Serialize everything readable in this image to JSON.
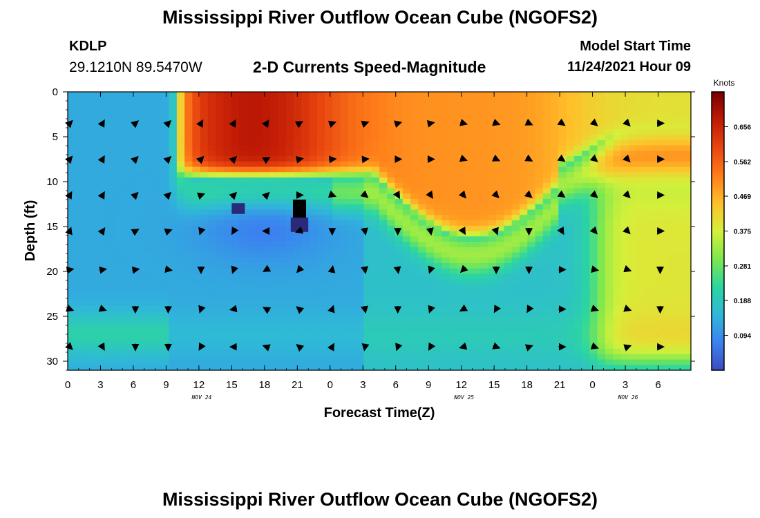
{
  "header": {
    "title": "Mississippi River Outflow Ocean Cube (NGOFS2)",
    "station_id": "KDLP",
    "coords": "29.1210N  89.5470W",
    "subtitle": "2-D Currents Speed-Magnitude",
    "model_start_label": "Model Start Time",
    "model_start_value": "11/24/2021 Hour 09",
    "footer_title": "Mississippi River Outflow Ocean Cube (NGOFS2)"
  },
  "chart_data": {
    "type": "heatmap",
    "title": "2-D Currents Speed-Magnitude",
    "xlabel": "Forecast Time(Z)",
    "ylabel": "Depth (ft)",
    "x_hours_from_start": [
      0,
      57
    ],
    "y_range": [
      0,
      31
    ],
    "x_ticks": [
      "0",
      "3",
      "6",
      "9",
      "12",
      "15",
      "18",
      "21",
      "0",
      "3",
      "6",
      "9",
      "12",
      "15",
      "18",
      "21",
      "0",
      "3",
      "6"
    ],
    "y_ticks": [
      0,
      5,
      10,
      15,
      20,
      25,
      30
    ],
    "date_labels": [
      {
        "text": "NOV 24",
        "at_hour": 12
      },
      {
        "text": "NOV 25",
        "at_hour": 36
      },
      {
        "text": "NOV 26",
        "at_hour": 51
      }
    ],
    "colorbar": {
      "label": "Knots",
      "ticks": [
        "0.656",
        "0.562",
        "0.469",
        "0.375",
        "0.281",
        "0.188",
        "0.094"
      ],
      "tick_values": [
        0.656,
        0.562,
        0.469,
        0.375,
        0.281,
        0.188,
        0.094
      ],
      "range": [
        0.0,
        0.75
      ],
      "colors": [
        "#3b4cc0",
        "#3b82f0",
        "#2fb8d8",
        "#2cd6a0",
        "#7ee84e",
        "#d4f03a",
        "#ffc02a",
        "#ff7d1a",
        "#e8450f",
        "#c01a05",
        "#780000"
      ]
    },
    "arrow_hours": [
      0,
      3,
      6,
      9,
      12,
      15,
      18,
      21,
      24,
      27,
      30,
      33,
      36,
      39,
      42,
      45,
      48,
      51,
      54
    ],
    "arrow_depths": [
      3.5,
      7.5,
      11.5,
      15.5,
      19.8,
      24.2,
      28.4
    ],
    "arrow_angles_deg": [
      [
        -45,
        -60,
        -40,
        -45,
        -60,
        -60,
        -55,
        -30,
        -20,
        -20,
        -15,
        -10,
        15,
        20,
        25,
        35,
        40,
        45,
        0
      ],
      [
        -50,
        -60,
        -45,
        -45,
        -45,
        -45,
        -30,
        -10,
        -5,
        -5,
        0,
        0,
        20,
        25,
        30,
        35,
        40,
        45,
        0
      ],
      [
        -60,
        -60,
        -45,
        -45,
        -20,
        -45,
        -45,
        0,
        20,
        40,
        60,
        55,
        50,
        45,
        40,
        35,
        40,
        45,
        0
      ],
      [
        -70,
        -55,
        -30,
        -20,
        110,
        120,
        180,
        160,
        90,
        80,
        90,
        80,
        60,
        70,
        90,
        60,
        50,
        45,
        0
      ],
      [
        -10,
        -10,
        -10,
        10,
        90,
        110,
        150,
        130,
        -80,
        80,
        80,
        110,
        135,
        90,
        90,
        0,
        10,
        20,
        90
      ],
      [
        20,
        20,
        90,
        90,
        110,
        170,
        210,
        220,
        -70,
        80,
        90,
        110,
        150,
        120,
        120,
        0,
        20,
        20,
        90
      ],
      [
        45,
        60,
        90,
        90,
        120,
        180,
        200,
        220,
        -60,
        100,
        110,
        120,
        165,
        20,
        -20,
        0,
        20,
        -20,
        0
      ]
    ],
    "grid": false
  }
}
